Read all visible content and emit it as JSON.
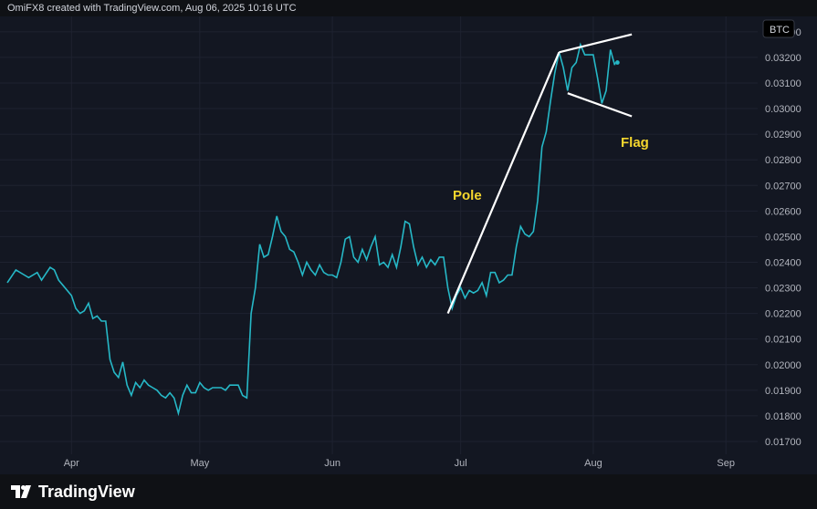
{
  "header": {
    "caption": "OmiFX8 created with TradingView.com, Aug 06, 2025 10:16 UTC"
  },
  "footer": {
    "brand": "TradingView"
  },
  "colors": {
    "background": "#131722",
    "grid": "#1e2230",
    "price_line": "#26b8c7",
    "pattern_line": "#ffffff",
    "annotation_text": "#f5d62e",
    "axis_text": "#b2b5be"
  },
  "chart_data": {
    "type": "line",
    "symbol": "BTC",
    "grid": true,
    "y_ticks": [
      0.033,
      0.032,
      0.031,
      0.03,
      0.029,
      0.028,
      0.027,
      0.026,
      0.025,
      0.024,
      0.023,
      0.022,
      0.021,
      0.02,
      0.019,
      0.018,
      0.017
    ],
    "y_tick_labels": [
      "0.03300",
      "0.03200",
      "0.03100",
      "0.03000",
      "0.02900",
      "0.02800",
      "0.02700",
      "0.02600",
      "0.02500",
      "0.02400",
      "0.02300",
      "0.02200",
      "0.02100",
      "0.02000",
      "0.01900",
      "0.01800",
      "0.01700"
    ],
    "ylim": [
      0.0165,
      0.0336
    ],
    "x_ticks": [
      {
        "label": "Apr",
        "date": "2025-04-01"
      },
      {
        "label": "May",
        "date": "2025-05-01"
      },
      {
        "label": "Jun",
        "date": "2025-06-01"
      },
      {
        "label": "Jul",
        "date": "2025-07-01"
      },
      {
        "label": "Aug",
        "date": "2025-08-01"
      },
      {
        "label": "Sep",
        "date": "2025-09-01"
      }
    ],
    "xlim": [
      "2025-03-17",
      "2025-09-08"
    ],
    "series": [
      {
        "points": [
          [
            "2025-03-17",
            0.0232
          ],
          [
            "2025-03-19",
            0.0237
          ],
          [
            "2025-03-21",
            0.0235
          ],
          [
            "2025-03-22",
            0.0234
          ],
          [
            "2025-03-24",
            0.0236
          ],
          [
            "2025-03-25",
            0.0233
          ],
          [
            "2025-03-27",
            0.0238
          ],
          [
            "2025-03-28",
            0.0237
          ],
          [
            "2025-03-29",
            0.0233
          ],
          [
            "2025-03-30",
            0.0231
          ],
          [
            "2025-04-01",
            0.0227
          ],
          [
            "2025-04-02",
            0.0222
          ],
          [
            "2025-04-03",
            0.022
          ],
          [
            "2025-04-04",
            0.0221
          ],
          [
            "2025-04-05",
            0.0224
          ],
          [
            "2025-04-06",
            0.0218
          ],
          [
            "2025-04-07",
            0.0219
          ],
          [
            "2025-04-08",
            0.0217
          ],
          [
            "2025-04-09",
            0.0217
          ],
          [
            "2025-04-10",
            0.0202
          ],
          [
            "2025-04-11",
            0.0197
          ],
          [
            "2025-04-12",
            0.0195
          ],
          [
            "2025-04-13",
            0.0201
          ],
          [
            "2025-04-14",
            0.0192
          ],
          [
            "2025-04-15",
            0.0188
          ],
          [
            "2025-04-16",
            0.0193
          ],
          [
            "2025-04-17",
            0.0191
          ],
          [
            "2025-04-18",
            0.0194
          ],
          [
            "2025-04-19",
            0.0192
          ],
          [
            "2025-04-20",
            0.0191
          ],
          [
            "2025-04-21",
            0.019
          ],
          [
            "2025-04-22",
            0.0188
          ],
          [
            "2025-04-23",
            0.0187
          ],
          [
            "2025-04-24",
            0.0189
          ],
          [
            "2025-04-25",
            0.0187
          ],
          [
            "2025-04-26",
            0.0181
          ],
          [
            "2025-04-27",
            0.0188
          ],
          [
            "2025-04-28",
            0.0192
          ],
          [
            "2025-04-29",
            0.0189
          ],
          [
            "2025-04-30",
            0.0189
          ],
          [
            "2025-05-01",
            0.0193
          ],
          [
            "2025-05-02",
            0.0191
          ],
          [
            "2025-05-03",
            0.019
          ],
          [
            "2025-05-04",
            0.0191
          ],
          [
            "2025-05-06",
            0.0191
          ],
          [
            "2025-05-07",
            0.019
          ],
          [
            "2025-05-08",
            0.0192
          ],
          [
            "2025-05-10",
            0.0192
          ],
          [
            "2025-05-11",
            0.0188
          ],
          [
            "2025-05-12",
            0.0187
          ],
          [
            "2025-05-13",
            0.022
          ],
          [
            "2025-05-14",
            0.023
          ],
          [
            "2025-05-15",
            0.0247
          ],
          [
            "2025-05-16",
            0.0242
          ],
          [
            "2025-05-17",
            0.0243
          ],
          [
            "2025-05-18",
            0.025
          ],
          [
            "2025-05-19",
            0.0258
          ],
          [
            "2025-05-20",
            0.0252
          ],
          [
            "2025-05-21",
            0.025
          ],
          [
            "2025-05-22",
            0.0245
          ],
          [
            "2025-05-23",
            0.0244
          ],
          [
            "2025-05-24",
            0.024
          ],
          [
            "2025-05-25",
            0.0235
          ],
          [
            "2025-05-26",
            0.024
          ],
          [
            "2025-05-27",
            0.0237
          ],
          [
            "2025-05-28",
            0.0235
          ],
          [
            "2025-05-29",
            0.0239
          ],
          [
            "2025-05-30",
            0.0236
          ],
          [
            "2025-05-31",
            0.0235
          ],
          [
            "2025-06-01",
            0.0235
          ],
          [
            "2025-06-02",
            0.0234
          ],
          [
            "2025-06-03",
            0.024
          ],
          [
            "2025-06-04",
            0.0249
          ],
          [
            "2025-06-05",
            0.025
          ],
          [
            "2025-06-06",
            0.0242
          ],
          [
            "2025-06-07",
            0.024
          ],
          [
            "2025-06-08",
            0.0245
          ],
          [
            "2025-06-09",
            0.0241
          ],
          [
            "2025-06-10",
            0.0246
          ],
          [
            "2025-06-11",
            0.025
          ],
          [
            "2025-06-12",
            0.0239
          ],
          [
            "2025-06-13",
            0.024
          ],
          [
            "2025-06-14",
            0.0238
          ],
          [
            "2025-06-15",
            0.0243
          ],
          [
            "2025-06-16",
            0.0238
          ],
          [
            "2025-06-17",
            0.0246
          ],
          [
            "2025-06-18",
            0.0256
          ],
          [
            "2025-06-19",
            0.0255
          ],
          [
            "2025-06-20",
            0.0246
          ],
          [
            "2025-06-21",
            0.0239
          ],
          [
            "2025-06-22",
            0.0242
          ],
          [
            "2025-06-23",
            0.0238
          ],
          [
            "2025-06-24",
            0.0241
          ],
          [
            "2025-06-25",
            0.0239
          ],
          [
            "2025-06-26",
            0.0242
          ],
          [
            "2025-06-27",
            0.0242
          ],
          [
            "2025-06-28",
            0.023
          ],
          [
            "2025-06-29",
            0.0222
          ],
          [
            "2025-06-30",
            0.0227
          ],
          [
            "2025-07-01",
            0.023
          ],
          [
            "2025-07-02",
            0.0226
          ],
          [
            "2025-07-03",
            0.0229
          ],
          [
            "2025-07-04",
            0.0228
          ],
          [
            "2025-07-05",
            0.0229
          ],
          [
            "2025-07-06",
            0.0232
          ],
          [
            "2025-07-07",
            0.0227
          ],
          [
            "2025-07-08",
            0.0236
          ],
          [
            "2025-07-09",
            0.0236
          ],
          [
            "2025-07-10",
            0.0232
          ],
          [
            "2025-07-11",
            0.0233
          ],
          [
            "2025-07-12",
            0.0235
          ],
          [
            "2025-07-13",
            0.0235
          ],
          [
            "2025-07-14",
            0.0246
          ],
          [
            "2025-07-15",
            0.0254
          ],
          [
            "2025-07-16",
            0.0251
          ],
          [
            "2025-07-17",
            0.025
          ],
          [
            "2025-07-18",
            0.0252
          ],
          [
            "2025-07-19",
            0.0264
          ],
          [
            "2025-07-20",
            0.0285
          ],
          [
            "2025-07-21",
            0.0291
          ],
          [
            "2025-07-22",
            0.0303
          ],
          [
            "2025-07-23",
            0.0314
          ],
          [
            "2025-07-24",
            0.0322
          ],
          [
            "2025-07-25",
            0.0316
          ],
          [
            "2025-07-26",
            0.0307
          ],
          [
            "2025-07-27",
            0.0316
          ],
          [
            "2025-07-28",
            0.0318
          ],
          [
            "2025-07-29",
            0.0325
          ],
          [
            "2025-07-30",
            0.0321
          ],
          [
            "2025-07-31",
            0.0321
          ],
          [
            "2025-08-01",
            0.0321
          ],
          [
            "2025-08-02",
            0.0312
          ],
          [
            "2025-08-03",
            0.0302
          ],
          [
            "2025-08-04",
            0.0307
          ],
          [
            "2025-08-05",
            0.0323
          ],
          [
            "2025-08-06",
            0.0317
          ],
          [
            "2025-08-06",
            0.0318
          ]
        ]
      }
    ],
    "annotations": [
      {
        "name": "pole",
        "label": "Pole",
        "points": [
          [
            "2025-06-28",
            0.022
          ],
          [
            "2025-07-24",
            0.0322
          ]
        ]
      },
      {
        "name": "flag-upper",
        "points": [
          [
            "2025-07-24",
            0.0322
          ],
          [
            "2025-08-10",
            0.0329
          ]
        ]
      },
      {
        "name": "flag-lower",
        "points": [
          [
            "2025-07-26",
            0.0306
          ],
          [
            "2025-08-10",
            0.0297
          ]
        ]
      },
      {
        "name": "flag",
        "label": "Flag"
      }
    ]
  }
}
